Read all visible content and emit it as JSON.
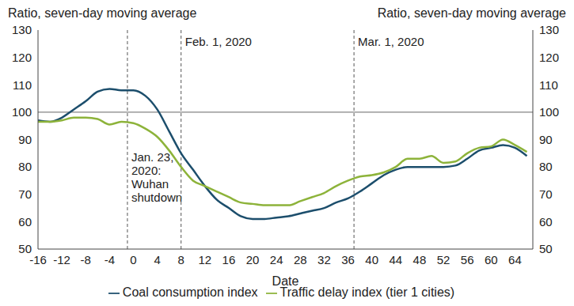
{
  "chart_data": {
    "type": "line",
    "ylabel": "Ratio, seven-day moving average",
    "y2label": "Ratio, seven-day moving average",
    "xlabel": "Date",
    "x": [
      -16,
      -14,
      -12,
      -10,
      -8,
      -6,
      -4,
      -2,
      0,
      2,
      4,
      6,
      8,
      10,
      12,
      14,
      16,
      18,
      20,
      22,
      24,
      26,
      28,
      30,
      32,
      34,
      36,
      38,
      40,
      42,
      44,
      46,
      48,
      50,
      52,
      54,
      56,
      58,
      60,
      62,
      64,
      66
    ],
    "series": [
      {
        "name": "Coal consumption index",
        "color": "#1c4e6c",
        "values": [
          97,
          96.5,
          98,
          101,
          104,
          107.5,
          108.5,
          108,
          108,
          106,
          101,
          93,
          85,
          79,
          73,
          68,
          65,
          62,
          61,
          61,
          61.5,
          62,
          63,
          64,
          65,
          67,
          68.5,
          71,
          74,
          77,
          79,
          80,
          80,
          80,
          80,
          80.5,
          83,
          86,
          87,
          88,
          87,
          84
        ]
      },
      {
        "name": "Traffic delay index (tier 1 cities)",
        "color": "#8db33a",
        "values": [
          96.5,
          96.5,
          97,
          98,
          98,
          97.5,
          95.5,
          96.5,
          96,
          94,
          91,
          86,
          80,
          75,
          73,
          71,
          69,
          67,
          66.5,
          66,
          66,
          66,
          67.5,
          69,
          70.5,
          73,
          75,
          76.5,
          77,
          78,
          80,
          83,
          83,
          84,
          81.5,
          82,
          85,
          87,
          87.5,
          90,
          88,
          85.5
        ]
      }
    ],
    "xlim": [
      -16,
      67
    ],
    "xticks": [
      -16,
      -12,
      -8,
      -4,
      0,
      4,
      8,
      12,
      16,
      20,
      24,
      28,
      32,
      36,
      40,
      44,
      48,
      52,
      56,
      60,
      64
    ],
    "ylim": [
      50,
      130
    ],
    "yticks": [
      50,
      60,
      70,
      80,
      90,
      100,
      110,
      120,
      130
    ],
    "y2lim": [
      50,
      130
    ],
    "y2ticks": [
      50,
      60,
      70,
      80,
      90,
      100,
      110,
      120,
      130
    ],
    "reference_y": 100,
    "annotations": [
      {
        "x": -1,
        "label": "Jan. 23,\n2020:\nWuhan\nshutdown"
      },
      {
        "x": 8,
        "label": "Feb. 1, 2020"
      },
      {
        "x": 37,
        "label": "Mar. 1, 2020"
      }
    ],
    "legend": "bottom",
    "grid": false
  }
}
